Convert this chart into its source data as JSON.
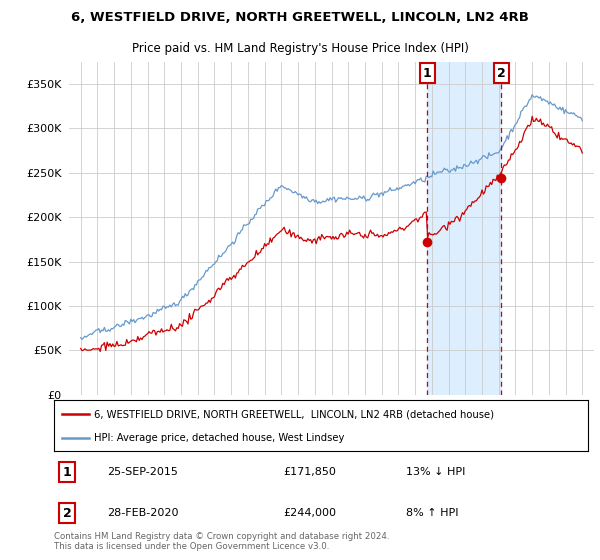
{
  "title1": "6, WESTFIELD DRIVE, NORTH GREETWELL, LINCOLN, LN2 4RB",
  "title2": "Price paid vs. HM Land Registry's House Price Index (HPI)",
  "legend_line1": "6, WESTFIELD DRIVE, NORTH GREETWELL,  LINCOLN, LN2 4RB (detached house)",
  "legend_line2": "HPI: Average price, detached house, West Lindsey",
  "annotation1_date": "25-SEP-2015",
  "annotation1_price": "£171,850",
  "annotation1_hpi": "13% ↓ HPI",
  "annotation2_date": "28-FEB-2020",
  "annotation2_price": "£244,000",
  "annotation2_hpi": "8% ↑ HPI",
  "footer": "Contains HM Land Registry data © Crown copyright and database right 2024.\nThis data is licensed under the Open Government Licence v3.0.",
  "sale1_year": 2015.73,
  "sale1_value": 171850,
  "sale2_year": 2020.16,
  "sale2_value": 244000,
  "red_color": "#cc0000",
  "blue_color": "#6699cc",
  "shade_color": "#ddeeff",
  "plot_bg": "#ffffff",
  "fig_bg": "#ffffff",
  "grid_color": "#cccccc",
  "ylim": [
    0,
    375000
  ],
  "yticks": [
    0,
    50000,
    100000,
    150000,
    200000,
    250000,
    300000,
    350000
  ],
  "xlim_start": 1994.3,
  "xlim_end": 2025.7
}
